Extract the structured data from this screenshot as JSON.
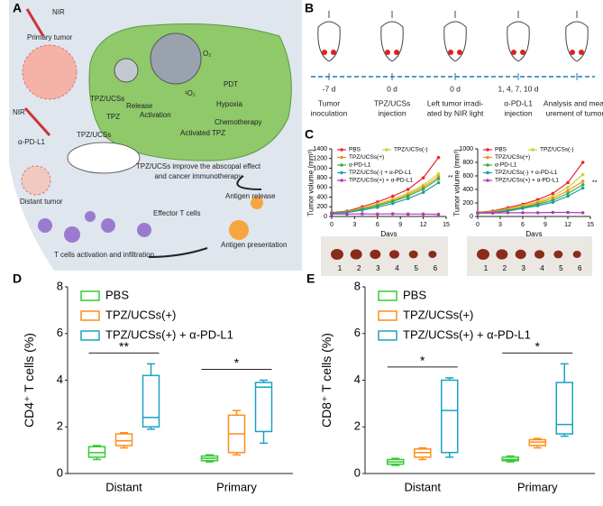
{
  "panel_a": {
    "label": "A",
    "texts": [
      "NIR",
      "Primary tumor",
      "TPZ/UCSs",
      "PDT",
      "Hypoxia",
      "Activation",
      "Chemotherapy",
      "Activated TPZ",
      "TPZ",
      "Release",
      "NIR",
      "TPZ/UCSs",
      "α-PD-L1",
      "TPZ/UCSs improve the abscopal effect",
      "and cancer immunotherapy",
      "Distant tumor",
      "Antigen release",
      "Effector T cells",
      "Antigen presentation",
      "T cells activation and infiltration",
      "O₂",
      "¹O₂"
    ]
  },
  "panel_b": {
    "label": "B",
    "steps": [
      {
        "time": "-7 d",
        "caption": [
          "Tumor",
          "inoculation"
        ]
      },
      {
        "time": "0 d",
        "caption": [
          "TPZ/UCSs",
          "injection"
        ]
      },
      {
        "time": "0 d",
        "caption": [
          "Left tumor irradi-",
          "ated by NIR light"
        ]
      },
      {
        "time": "1, 4, 7, 10 d",
        "caption": [
          "α-PD-L1",
          "injection"
        ]
      },
      {
        "time": "",
        "caption": [
          "Analysis and meas-",
          "urement of tumors"
        ]
      }
    ]
  },
  "panel_labels": {
    "c": "C",
    "d": "D",
    "e": "E"
  },
  "panel_c_photos": {
    "labels": [
      "1",
      "2",
      "3",
      "4",
      "5",
      "6"
    ]
  },
  "chart_data": [
    {
      "type": "line",
      "x_label": "Days",
      "y_label": "Tumor volume (mm³)",
      "x": [
        0,
        2,
        4,
        6,
        8,
        10,
        12,
        14
      ],
      "xlim": [
        0,
        15
      ],
      "xticks": [
        0,
        3,
        6,
        9,
        12,
        15
      ],
      "ylim": [
        0,
        1400
      ],
      "yticks": [
        0,
        200,
        400,
        600,
        800,
        1000,
        1200,
        1400
      ],
      "annotation": "**",
      "series": [
        {
          "name": "PBS",
          "color": "#e8262b",
          "values": [
            80,
            110,
            200,
            300,
            420,
            560,
            800,
            1220
          ]
        },
        {
          "name": "TPZ/UCSs(-)",
          "color": "#c9d431",
          "values": [
            70,
            100,
            170,
            260,
            360,
            480,
            650,
            880
          ]
        },
        {
          "name": "TPZ/UCSs(+)",
          "color": "#f28e1c",
          "values": [
            70,
            95,
            160,
            240,
            330,
            450,
            610,
            820
          ]
        },
        {
          "name": "α-PD-L1",
          "color": "#3aae3a",
          "values": [
            70,
            90,
            150,
            220,
            310,
            420,
            570,
            780
          ]
        },
        {
          "name": "TPZ/UCSs(-) + α-PD-L1",
          "color": "#1e9fa8",
          "values": [
            60,
            80,
            130,
            190,
            270,
            370,
            500,
            700
          ]
        },
        {
          "name": "TPZ/UCSs(+) + α-PD-L1",
          "color": "#b23ab8",
          "values": [
            50,
            50,
            55,
            50,
            55,
            50,
            50,
            45
          ]
        }
      ]
    },
    {
      "type": "line",
      "x_label": "Days",
      "y_label": "Tumor volume (mm³)",
      "x": [
        0,
        2,
        4,
        6,
        8,
        10,
        12,
        14
      ],
      "xlim": [
        0,
        15
      ],
      "xticks": [
        0,
        3,
        6,
        9,
        12,
        15
      ],
      "ylim": [
        0,
        1000
      ],
      "yticks": [
        0,
        200,
        400,
        600,
        800,
        1000
      ],
      "annotation": "**",
      "series": [
        {
          "name": "PBS",
          "color": "#e8262b",
          "values": [
            60,
            80,
            130,
            180,
            250,
            340,
            500,
            800
          ]
        },
        {
          "name": "TPZ/UCSs(-)",
          "color": "#c9d431",
          "values": [
            55,
            70,
            110,
            160,
            220,
            300,
            430,
            620
          ]
        },
        {
          "name": "TPZ/UCSs(+)",
          "color": "#f28e1c",
          "values": [
            55,
            65,
            100,
            140,
            200,
            270,
            380,
            520
          ]
        },
        {
          "name": "α-PD-L1",
          "color": "#3aae3a",
          "values": [
            50,
            60,
            90,
            130,
            180,
            240,
            340,
            470
          ]
        },
        {
          "name": "TPZ/UCSs(-) + α-PD-L1",
          "color": "#1e9fa8",
          "values": [
            50,
            55,
            80,
            120,
            160,
            210,
            300,
            420
          ]
        },
        {
          "name": "TPZ/UCSs(+) + α-PD-L1",
          "color": "#b23ab8",
          "values": [
            50,
            50,
            55,
            55,
            55,
            60,
            60,
            55
          ]
        }
      ]
    },
    {
      "type": "box",
      "y_label": "CD4⁺ T cells (%)",
      "categories": [
        "Distant",
        "Primary"
      ],
      "ylim": [
        0,
        8
      ],
      "yticks": [
        0,
        2,
        4,
        6,
        8
      ],
      "annotations": [
        "**",
        "*"
      ],
      "series": [
        {
          "name": "PBS",
          "color": "#33cc33",
          "values": [
            [
              0.6,
              0.7,
              0.9,
              1.15,
              1.2
            ],
            [
              0.5,
              0.55,
              0.65,
              0.75,
              0.8
            ]
          ]
        },
        {
          "name": "TPZ/UCSs(+)",
          "color": "#ff8c1a",
          "values": [
            [
              1.1,
              1.2,
              1.4,
              1.7,
              1.75
            ],
            [
              0.8,
              0.9,
              1.7,
              2.5,
              2.7
            ]
          ]
        },
        {
          "name": "TPZ/UCSs(+) + α-PD-L1",
          "color": "#1aa3c4",
          "values": [
            [
              1.9,
              2.0,
              2.4,
              4.2,
              4.7
            ],
            [
              1.3,
              1.8,
              3.7,
              3.9,
              4.0
            ]
          ]
        }
      ]
    },
    {
      "type": "box",
      "y_label": "CD8⁺ T cells (%)",
      "categories": [
        "Distant",
        "Primary"
      ],
      "ylim": [
        0,
        8
      ],
      "yticks": [
        0,
        2,
        4,
        6,
        8
      ],
      "annotations": [
        "*",
        "*"
      ],
      "series": [
        {
          "name": "PBS",
          "color": "#33cc33",
          "values": [
            [
              0.35,
              0.4,
              0.5,
              0.6,
              0.65
            ],
            [
              0.5,
              0.55,
              0.6,
              0.7,
              0.75
            ]
          ]
        },
        {
          "name": "TPZ/UCSs(+)",
          "color": "#ff8c1a",
          "values": [
            [
              0.6,
              0.7,
              0.9,
              1.05,
              1.1
            ],
            [
              1.1,
              1.2,
              1.35,
              1.45,
              1.5
            ]
          ]
        },
        {
          "name": "TPZ/UCSs(+) + α-PD-L1",
          "color": "#1aa3c4",
          "values": [
            [
              0.7,
              0.9,
              2.7,
              4.0,
              4.1
            ],
            [
              1.6,
              1.7,
              2.1,
              3.9,
              4.7
            ]
          ]
        }
      ]
    }
  ]
}
